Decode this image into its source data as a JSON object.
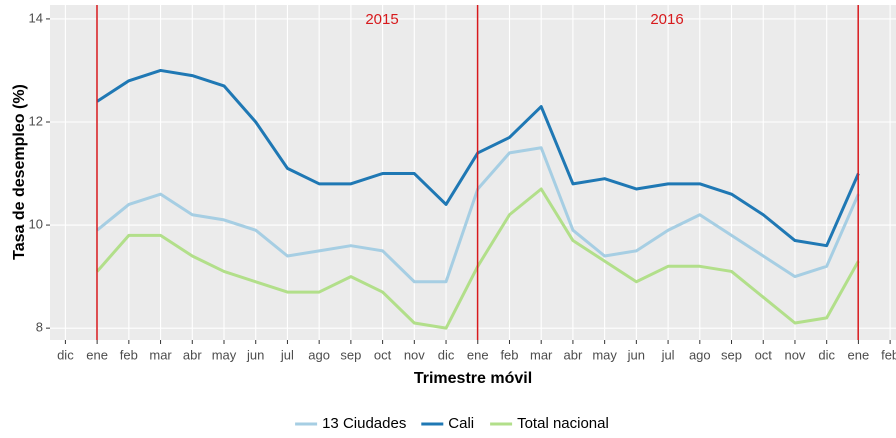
{
  "chart_data": {
    "type": "line",
    "x_label": "Trimestre móvil",
    "y_label": "Tasa de desempleo (%)",
    "annotations": [
      "2015",
      "2016"
    ],
    "categories": [
      "dic",
      "ene",
      "feb",
      "mar",
      "abr",
      "may",
      "jun",
      "jul",
      "ago",
      "sep",
      "oct",
      "nov",
      "dic",
      "ene",
      "feb",
      "mar",
      "abr",
      "may",
      "jun",
      "jul",
      "ago",
      "sep",
      "oct",
      "nov",
      "dic",
      "ene",
      "feb"
    ],
    "series": [
      {
        "name": "13 Ciudades",
        "color": "#a6cee3",
        "values": [
          null,
          9.9,
          10.4,
          10.6,
          10.2,
          10.1,
          9.9,
          9.4,
          9.5,
          9.6,
          9.5,
          8.9,
          8.9,
          10.7,
          11.4,
          11.5,
          9.9,
          9.4,
          9.5,
          9.9,
          10.2,
          9.8,
          9.4,
          9.0,
          9.2,
          10.6,
          null
        ]
      },
      {
        "name": "Cali",
        "color": "#1f78b4",
        "values": [
          null,
          12.4,
          12.8,
          13.0,
          12.9,
          12.7,
          12.0,
          11.1,
          10.8,
          10.8,
          11.0,
          11.0,
          10.4,
          11.4,
          11.7,
          12.3,
          10.8,
          10.9,
          10.7,
          10.8,
          10.8,
          10.6,
          10.2,
          9.7,
          9.6,
          11.0,
          null
        ]
      },
      {
        "name": "Total nacional",
        "color": "#b2df8a",
        "values": [
          null,
          9.1,
          9.8,
          9.8,
          9.4,
          9.1,
          8.9,
          8.7,
          8.7,
          9.0,
          8.7,
          8.1,
          8.0,
          9.2,
          10.2,
          10.7,
          9.7,
          9.3,
          8.9,
          9.2,
          9.2,
          9.1,
          8.6,
          8.1,
          8.2,
          9.3,
          null
        ]
      }
    ],
    "ylim": [
      7.77,
      14.27
    ],
    "yticks": [
      8,
      10,
      12,
      14
    ],
    "grid": true,
    "legend": "bottom"
  }
}
